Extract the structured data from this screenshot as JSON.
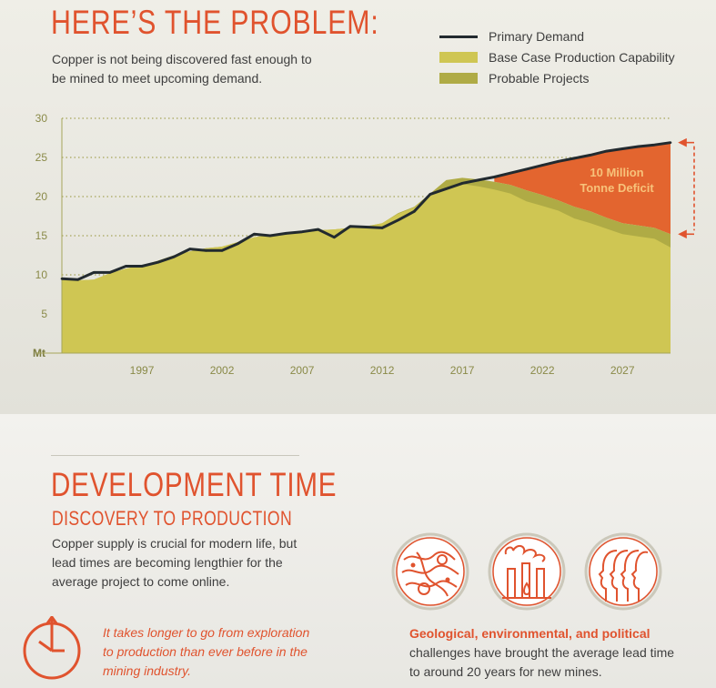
{
  "header": {
    "title": "HERE’S THE PROBLEM:",
    "subtitle": "Copper is not being discovered fast enough to be mined to meet upcoming demand."
  },
  "legend": [
    {
      "label": "Primary Demand",
      "swatch": "line",
      "color": "#222a2f"
    },
    {
      "label": "Base Case Production Capability",
      "swatch": "fill",
      "color": "#cfc653"
    },
    {
      "label": "Probable Projects",
      "swatch": "fill",
      "color": "#afab45"
    }
  ],
  "chart_data": {
    "type": "area",
    "y_unit_label": "Mt",
    "ylim": [
      0,
      30
    ],
    "yticks": [
      5,
      10,
      15,
      20,
      25,
      30
    ],
    "xlim": [
      1992,
      2030
    ],
    "xticks": [
      1997,
      2002,
      2007,
      2012,
      2017,
      2022,
      2027
    ],
    "grid": true,
    "x": [
      1992,
      1993,
      1994,
      1995,
      1996,
      1997,
      1998,
      1999,
      2000,
      2001,
      2002,
      2003,
      2004,
      2005,
      2006,
      2007,
      2008,
      2009,
      2010,
      2011,
      2012,
      2013,
      2014,
      2015,
      2016,
      2017,
      2018,
      2019,
      2020,
      2021,
      2022,
      2023,
      2024,
      2025,
      2026,
      2027,
      2028,
      2029,
      2030
    ],
    "series": [
      {
        "name": "Primary Demand",
        "kind": "line",
        "values": [
          9.5,
          9.4,
          10.3,
          10.3,
          11.1,
          11.1,
          11.6,
          12.3,
          13.3,
          13.1,
          13.1,
          14.0,
          15.2,
          15.0,
          15.3,
          15.5,
          15.8,
          14.8,
          16.2,
          16.1,
          16.0,
          17.0,
          18.1,
          20.3,
          21.0,
          21.7,
          22.1,
          22.5,
          23.0,
          23.5,
          24.0,
          24.5,
          24.9,
          25.3,
          25.8,
          26.1,
          26.4,
          26.6,
          26.9
        ]
      },
      {
        "name": "Base Case Production Capability",
        "kind": "area",
        "values": [
          9.5,
          9.3,
          9.4,
          10.2,
          10.8,
          11.2,
          11.8,
          12.5,
          13.0,
          13.4,
          13.6,
          14.2,
          14.8,
          15.1,
          15.3,
          15.5,
          15.7,
          15.8,
          16.0,
          16.2,
          16.6,
          17.8,
          18.6,
          20.3,
          21.2,
          21.6,
          21.3,
          20.9,
          20.4,
          19.4,
          18.8,
          18.2,
          17.2,
          16.6,
          15.9,
          15.2,
          14.9,
          14.6,
          13.5
        ]
      },
      {
        "name": "Probable Projects",
        "kind": "area",
        "values": [
          9.5,
          9.3,
          9.4,
          10.2,
          10.8,
          11.2,
          11.8,
          12.5,
          13.0,
          13.4,
          13.6,
          14.2,
          14.8,
          15.1,
          15.3,
          15.5,
          15.7,
          15.8,
          16.0,
          16.2,
          16.6,
          17.9,
          18.7,
          20.4,
          22.1,
          22.4,
          22.2,
          21.9,
          21.5,
          20.8,
          20.2,
          19.5,
          18.7,
          18.1,
          17.3,
          16.6,
          16.3,
          16.0,
          15.2
        ]
      }
    ],
    "deficit": {
      "color": "#e3652f",
      "annotation": "10 Million Tonne Deficit",
      "from_year": 2019
    }
  },
  "development": {
    "title": "DEVELOPMENT TIME",
    "subtitle": "DISCOVERY TO PRODUCTION",
    "body": "Copper supply is crucial for modern life, but lead times are becoming lengthier for the average project to come online.",
    "quote": "It takes longer to go from exploration to production than ever before in the mining industry.",
    "challenge_bold": "Geological, environmental, and political",
    "challenge_rest": "challenges have brought the average lead time to around 20 years for new mines.",
    "icons": [
      "topography-icon",
      "factory-icon",
      "people-profiles-icon"
    ]
  },
  "colors": {
    "accent": "#e0532e",
    "demand_line": "#222a2f",
    "base_case": "#cfc653",
    "probable": "#afab45",
    "deficit": "#e3652f"
  }
}
